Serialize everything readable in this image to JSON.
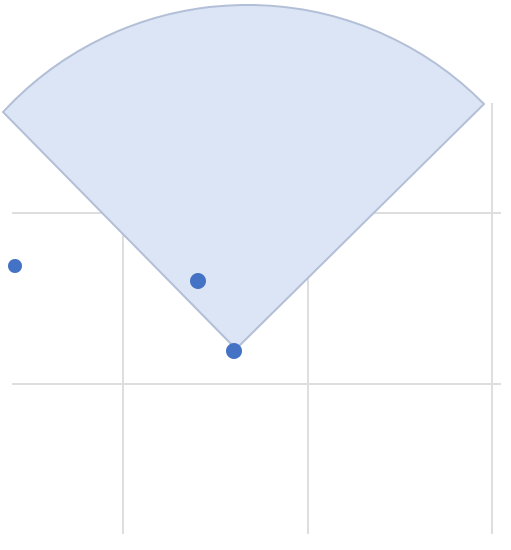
{
  "diagram": {
    "kind": "sector-field-of-view-on-grid",
    "colors": {
      "background": "#ffffff",
      "grid": "#dedede",
      "sector_fill": "#dbe5f5",
      "sector_stroke": "#b3bfd6",
      "point": "#4472c4"
    },
    "grid_on": true,
    "sector": {
      "apex_point": "point-2",
      "opening": "upward",
      "angle_degrees": 90
    },
    "points": [
      {
        "id": "point-1",
        "label": ""
      },
      {
        "id": "point-2",
        "label": ""
      },
      {
        "id": "point-3",
        "label": ""
      }
    ]
  }
}
